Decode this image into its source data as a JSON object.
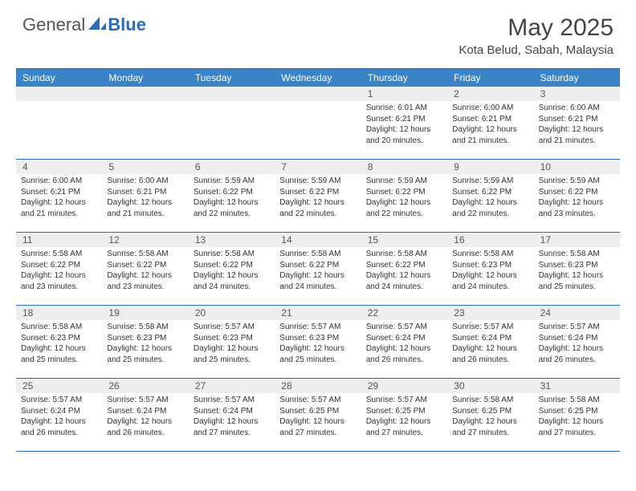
{
  "logo": {
    "general": "General",
    "blue": "Blue"
  },
  "title": {
    "month_year": "May 2025",
    "location": "Kota Belud, Sabah, Malaysia"
  },
  "colors": {
    "header_bg": "#3a83c7",
    "header_text": "#ffffff",
    "border": "#2a6db8",
    "daynum_bg": "#eeeeee",
    "text": "#333333"
  },
  "weekdays": [
    "Sunday",
    "Monday",
    "Tuesday",
    "Wednesday",
    "Thursday",
    "Friday",
    "Saturday"
  ],
  "weeks": [
    [
      {
        "n": "",
        "sr": "",
        "ss": "",
        "dl": ""
      },
      {
        "n": "",
        "sr": "",
        "ss": "",
        "dl": ""
      },
      {
        "n": "",
        "sr": "",
        "ss": "",
        "dl": ""
      },
      {
        "n": "",
        "sr": "",
        "ss": "",
        "dl": ""
      },
      {
        "n": "1",
        "sr": "Sunrise: 6:01 AM",
        "ss": "Sunset: 6:21 PM",
        "dl": "Daylight: 12 hours and 20 minutes."
      },
      {
        "n": "2",
        "sr": "Sunrise: 6:00 AM",
        "ss": "Sunset: 6:21 PM",
        "dl": "Daylight: 12 hours and 21 minutes."
      },
      {
        "n": "3",
        "sr": "Sunrise: 6:00 AM",
        "ss": "Sunset: 6:21 PM",
        "dl": "Daylight: 12 hours and 21 minutes."
      }
    ],
    [
      {
        "n": "4",
        "sr": "Sunrise: 6:00 AM",
        "ss": "Sunset: 6:21 PM",
        "dl": "Daylight: 12 hours and 21 minutes."
      },
      {
        "n": "5",
        "sr": "Sunrise: 6:00 AM",
        "ss": "Sunset: 6:21 PM",
        "dl": "Daylight: 12 hours and 21 minutes."
      },
      {
        "n": "6",
        "sr": "Sunrise: 5:59 AM",
        "ss": "Sunset: 6:22 PM",
        "dl": "Daylight: 12 hours and 22 minutes."
      },
      {
        "n": "7",
        "sr": "Sunrise: 5:59 AM",
        "ss": "Sunset: 6:22 PM",
        "dl": "Daylight: 12 hours and 22 minutes."
      },
      {
        "n": "8",
        "sr": "Sunrise: 5:59 AM",
        "ss": "Sunset: 6:22 PM",
        "dl": "Daylight: 12 hours and 22 minutes."
      },
      {
        "n": "9",
        "sr": "Sunrise: 5:59 AM",
        "ss": "Sunset: 6:22 PM",
        "dl": "Daylight: 12 hours and 22 minutes."
      },
      {
        "n": "10",
        "sr": "Sunrise: 5:59 AM",
        "ss": "Sunset: 6:22 PM",
        "dl": "Daylight: 12 hours and 23 minutes."
      }
    ],
    [
      {
        "n": "11",
        "sr": "Sunrise: 5:58 AM",
        "ss": "Sunset: 6:22 PM",
        "dl": "Daylight: 12 hours and 23 minutes."
      },
      {
        "n": "12",
        "sr": "Sunrise: 5:58 AM",
        "ss": "Sunset: 6:22 PM",
        "dl": "Daylight: 12 hours and 23 minutes."
      },
      {
        "n": "13",
        "sr": "Sunrise: 5:58 AM",
        "ss": "Sunset: 6:22 PM",
        "dl": "Daylight: 12 hours and 24 minutes."
      },
      {
        "n": "14",
        "sr": "Sunrise: 5:58 AM",
        "ss": "Sunset: 6:22 PM",
        "dl": "Daylight: 12 hours and 24 minutes."
      },
      {
        "n": "15",
        "sr": "Sunrise: 5:58 AM",
        "ss": "Sunset: 6:22 PM",
        "dl": "Daylight: 12 hours and 24 minutes."
      },
      {
        "n": "16",
        "sr": "Sunrise: 5:58 AM",
        "ss": "Sunset: 6:23 PM",
        "dl": "Daylight: 12 hours and 24 minutes."
      },
      {
        "n": "17",
        "sr": "Sunrise: 5:58 AM",
        "ss": "Sunset: 6:23 PM",
        "dl": "Daylight: 12 hours and 25 minutes."
      }
    ],
    [
      {
        "n": "18",
        "sr": "Sunrise: 5:58 AM",
        "ss": "Sunset: 6:23 PM",
        "dl": "Daylight: 12 hours and 25 minutes."
      },
      {
        "n": "19",
        "sr": "Sunrise: 5:58 AM",
        "ss": "Sunset: 6:23 PM",
        "dl": "Daylight: 12 hours and 25 minutes."
      },
      {
        "n": "20",
        "sr": "Sunrise: 5:57 AM",
        "ss": "Sunset: 6:23 PM",
        "dl": "Daylight: 12 hours and 25 minutes."
      },
      {
        "n": "21",
        "sr": "Sunrise: 5:57 AM",
        "ss": "Sunset: 6:23 PM",
        "dl": "Daylight: 12 hours and 25 minutes."
      },
      {
        "n": "22",
        "sr": "Sunrise: 5:57 AM",
        "ss": "Sunset: 6:24 PM",
        "dl": "Daylight: 12 hours and 26 minutes."
      },
      {
        "n": "23",
        "sr": "Sunrise: 5:57 AM",
        "ss": "Sunset: 6:24 PM",
        "dl": "Daylight: 12 hours and 26 minutes."
      },
      {
        "n": "24",
        "sr": "Sunrise: 5:57 AM",
        "ss": "Sunset: 6:24 PM",
        "dl": "Daylight: 12 hours and 26 minutes."
      }
    ],
    [
      {
        "n": "25",
        "sr": "Sunrise: 5:57 AM",
        "ss": "Sunset: 6:24 PM",
        "dl": "Daylight: 12 hours and 26 minutes."
      },
      {
        "n": "26",
        "sr": "Sunrise: 5:57 AM",
        "ss": "Sunset: 6:24 PM",
        "dl": "Daylight: 12 hours and 26 minutes."
      },
      {
        "n": "27",
        "sr": "Sunrise: 5:57 AM",
        "ss": "Sunset: 6:24 PM",
        "dl": "Daylight: 12 hours and 27 minutes."
      },
      {
        "n": "28",
        "sr": "Sunrise: 5:57 AM",
        "ss": "Sunset: 6:25 PM",
        "dl": "Daylight: 12 hours and 27 minutes."
      },
      {
        "n": "29",
        "sr": "Sunrise: 5:57 AM",
        "ss": "Sunset: 6:25 PM",
        "dl": "Daylight: 12 hours and 27 minutes."
      },
      {
        "n": "30",
        "sr": "Sunrise: 5:58 AM",
        "ss": "Sunset: 6:25 PM",
        "dl": "Daylight: 12 hours and 27 minutes."
      },
      {
        "n": "31",
        "sr": "Sunrise: 5:58 AM",
        "ss": "Sunset: 6:25 PM",
        "dl": "Daylight: 12 hours and 27 minutes."
      }
    ]
  ]
}
